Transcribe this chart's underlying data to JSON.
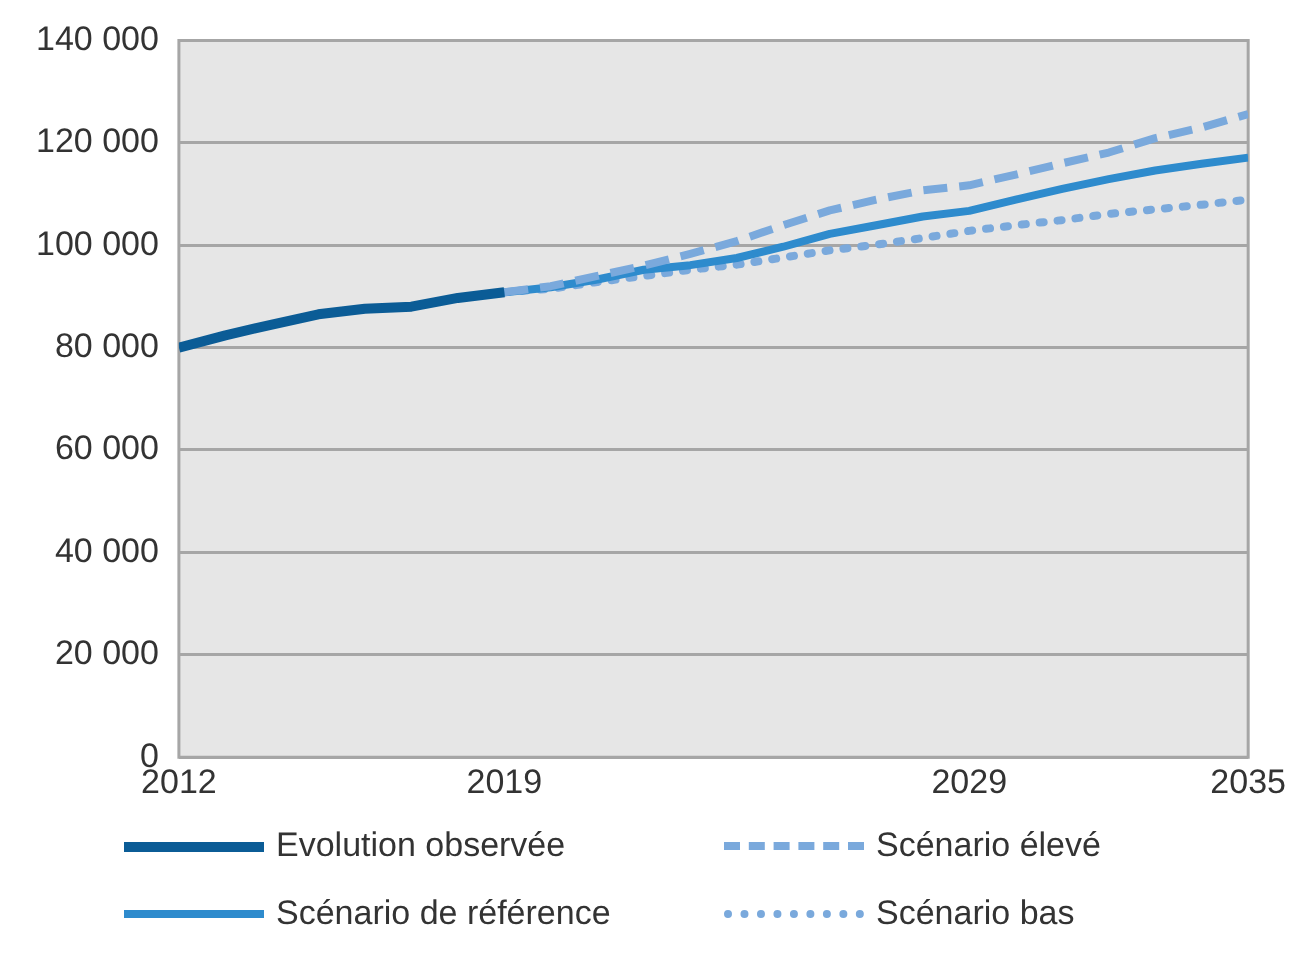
{
  "chart_data": {
    "type": "line",
    "x": [
      2012,
      2013,
      2014,
      2015,
      2016,
      2017,
      2018,
      2019,
      2020,
      2021,
      2022,
      2023,
      2024,
      2025,
      2026,
      2027,
      2028,
      2029,
      2030,
      2031,
      2032,
      2033,
      2034,
      2035
    ],
    "xlim": [
      2012,
      2035
    ],
    "xticks": [
      2012,
      2019,
      2029,
      2035
    ],
    "ylim": [
      0,
      140000
    ],
    "yticks": [
      0,
      {
        "value": 20000,
        "label": "20 000"
      },
      {
        "value": 40000,
        "label": "40 000"
      },
      {
        "value": 60000,
        "label": "60 000"
      },
      {
        "value": 80000,
        "label": "80 000"
      },
      {
        "value": 100000,
        "label": "100 000"
      },
      {
        "value": 120000,
        "label": "120 000"
      },
      {
        "value": 140000,
        "label": "140 000"
      }
    ],
    "grid": "y",
    "legend": "bottom",
    "marker": "none",
    "series": [
      {
        "name": "Evolution observée",
        "color": "#0b5c96",
        "line_style": "solid",
        "values": [
          80000,
          82400,
          84500,
          86500,
          87600,
          88000,
          89700,
          90800,
          null,
          null,
          null,
          null,
          null,
          null,
          null,
          null,
          null,
          null,
          null,
          null,
          null,
          null,
          null,
          null
        ]
      },
      {
        "name": "Scénario élevé",
        "color": "#7aa9dc",
        "line_style": "dashed",
        "values": [
          null,
          null,
          null,
          null,
          null,
          null,
          null,
          90800,
          92000,
          94000,
          96000,
          98300,
          100800,
          103900,
          106800,
          108900,
          110700,
          111700,
          113800,
          116000,
          118100,
          120900,
          123000,
          125600
        ]
      },
      {
        "name": "Scénario de référence",
        "color": "#2e8bcd",
        "line_style": "solid",
        "values": [
          null,
          null,
          null,
          null,
          null,
          null,
          null,
          90800,
          91800,
          93300,
          95200,
          96100,
          97500,
          99700,
          102200,
          103900,
          105600,
          106700,
          108900,
          111000,
          112900,
          114600,
          115900,
          117100
        ]
      },
      {
        "name": "Scénario bas",
        "color": "#7aa9dc",
        "line_style": "dotted",
        "values": [
          null,
          null,
          null,
          null,
          null,
          null,
          null,
          90800,
          91500,
          92800,
          94000,
          95200,
          96200,
          97600,
          99000,
          100100,
          101400,
          102800,
          103900,
          104900,
          106100,
          107000,
          107900,
          108900
        ]
      }
    ]
  }
}
